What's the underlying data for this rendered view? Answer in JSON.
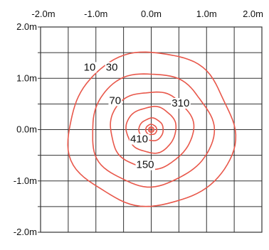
{
  "chart_data": {
    "type": "contour",
    "title": "",
    "xlabel": "",
    "ylabel": "",
    "xlim": [
      -2.0,
      2.0
    ],
    "ylim": [
      -2.0,
      2.0
    ],
    "grid": true,
    "line_color": "#e8574a",
    "grid_color": "#333333",
    "x_ticks": [
      "-2.0m",
      "-1.0m",
      "0.0m",
      "1.0m",
      "2.0m"
    ],
    "y_ticks": [
      "2.0m",
      "1.0m",
      "0.0m",
      "-1.0m",
      "-2.0m"
    ],
    "contour_levels": [
      {
        "value": 10,
        "label": "10",
        "radius_m": 1.5,
        "label_at": [
          -1.22,
          1.15
        ]
      },
      {
        "value": 30,
        "label": "30",
        "radius_m": 1.1,
        "label_at": [
          -0.82,
          1.15
        ]
      },
      {
        "value": 70,
        "label": "70",
        "radius_m": 0.75,
        "label_at": [
          -0.76,
          0.5
        ]
      },
      {
        "value": 150,
        "label": "150",
        "radius_m": 0.45,
        "label_at": [
          -0.27,
          -0.75
        ]
      },
      {
        "value": 310,
        "label": "310",
        "radius_m": 0.22,
        "label_at": [
          0.37,
          0.45
        ]
      },
      {
        "value": 410,
        "label": "410",
        "radius_m": 0.1,
        "label_at": [
          -0.38,
          -0.25
        ]
      }
    ]
  }
}
